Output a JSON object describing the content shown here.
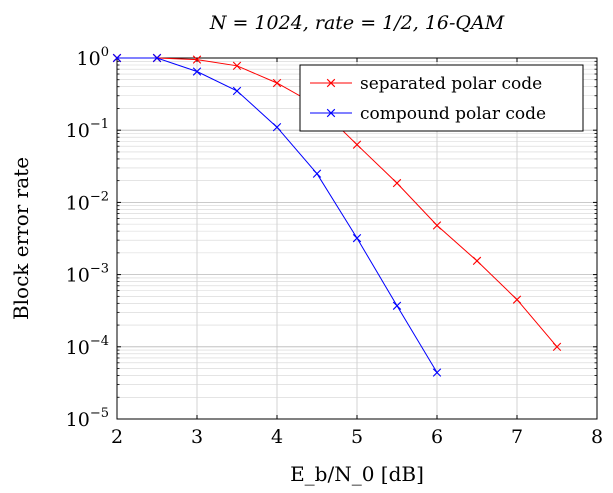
{
  "chart_data": {
    "type": "line",
    "title": "N = 1024, rate = 1/2, 16-QAM",
    "xlabel": "E_b/N_0 [dB]",
    "ylabel": "Block error rate",
    "xlim": [
      2,
      8
    ],
    "ylim": [
      1e-05,
      1
    ],
    "yscale": "log",
    "grid": true,
    "legend_position": "top-right",
    "x_ticks": [
      "2",
      "3",
      "4",
      "5",
      "6",
      "7",
      "8"
    ],
    "y_ticks": [
      {
        "base": "10",
        "exp": "0"
      },
      {
        "base": "10",
        "exp": "−1"
      },
      {
        "base": "10",
        "exp": "−2"
      },
      {
        "base": "10",
        "exp": "−3"
      },
      {
        "base": "10",
        "exp": "−4"
      },
      {
        "base": "10",
        "exp": "−5"
      }
    ],
    "series": [
      {
        "name": "separated polar code",
        "color": "#ff0000",
        "marker": "x",
        "x": [
          2,
          2.5,
          3,
          3.5,
          4,
          4.5,
          5,
          5.5,
          6,
          6.5,
          7,
          7.5
        ],
        "y": [
          1.0,
          1.0,
          0.95,
          0.78,
          0.45,
          0.22,
          0.063,
          0.0185,
          0.0048,
          0.00155,
          0.00045,
          0.0001
        ]
      },
      {
        "name": "compound polar code",
        "color": "#0000ff",
        "marker": "x",
        "x": [
          2,
          2.5,
          3,
          3.5,
          4,
          4.5,
          5,
          5.5,
          6
        ],
        "y": [
          1.0,
          1.0,
          0.65,
          0.35,
          0.11,
          0.025,
          0.0032,
          0.00037,
          4.4e-05
        ]
      }
    ]
  }
}
